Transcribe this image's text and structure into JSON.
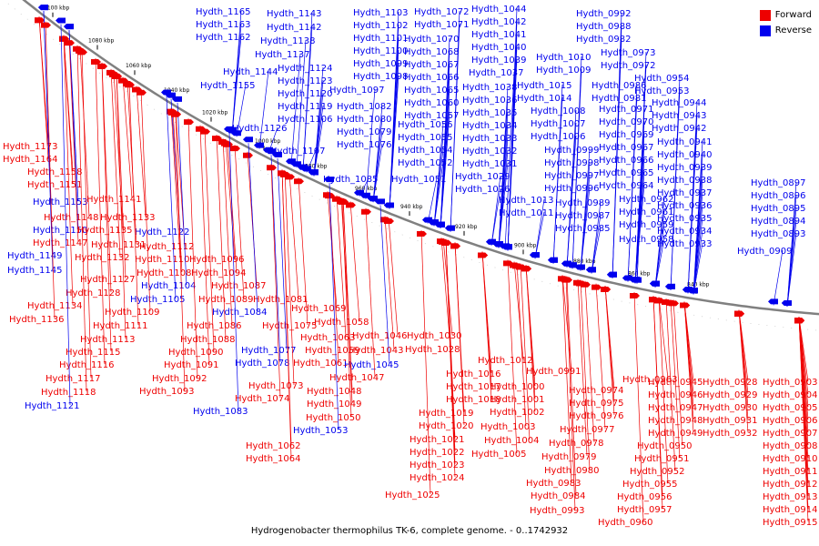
{
  "colors": {
    "forward": "#ee0000",
    "reverse": "#0000ee",
    "backbone": "#808080"
  },
  "legend": {
    "forward_label": "Forward",
    "reverse_label": "Reverse"
  },
  "caption": "Hydrogenobacter thermophilus TK-6, complete genome. - 0..1742932",
  "scale_ticks": [
    "1100 kbp",
    "1080 kbp",
    "1060 kbp",
    "1040 kbp",
    "1020 kbp",
    "1000 kbp",
    "980 kbp",
    "960 kbp",
    "940 kbp",
    "920 kbp",
    "900 kbp",
    "880 kbp",
    "860 kbp",
    "840 kbp"
  ],
  "genes": [
    {
      "name": "Hydth_1165",
      "strand": "reverse"
    },
    {
      "name": "Hydth_1163",
      "strand": "reverse"
    },
    {
      "name": "Hydth_1162",
      "strand": "reverse"
    },
    {
      "name": "Hydth_1155",
      "strand": "reverse"
    },
    {
      "name": "Hydth_1173",
      "strand": "forward"
    },
    {
      "name": "Hydth_1164",
      "strand": "forward"
    },
    {
      "name": "Hydth_1158",
      "strand": "forward"
    },
    {
      "name": "Hydth_1151",
      "strand": "forward"
    },
    {
      "name": "Hydth_1153",
      "strand": "reverse"
    },
    {
      "name": "Hydth_1141",
      "strand": "forward"
    },
    {
      "name": "Hydth_1148",
      "strand": "forward"
    },
    {
      "name": "Hydth_1133",
      "strand": "forward"
    },
    {
      "name": "Hydth_1150",
      "strand": "reverse"
    },
    {
      "name": "Hydth_1135",
      "strand": "forward"
    },
    {
      "name": "Hydth_1122",
      "strand": "reverse"
    },
    {
      "name": "Hydth_1147",
      "strand": "forward"
    },
    {
      "name": "Hydth_1131",
      "strand": "forward"
    },
    {
      "name": "Hydth_1112",
      "strand": "forward"
    },
    {
      "name": "Hydth_1149",
      "strand": "reverse"
    },
    {
      "name": "Hydth_1132",
      "strand": "forward"
    },
    {
      "name": "Hydth_1110",
      "strand": "forward"
    },
    {
      "name": "Hydth_1096",
      "strand": "forward"
    },
    {
      "name": "Hydth_1145",
      "strand": "reverse"
    },
    {
      "name": "Hydth_1108",
      "strand": "forward"
    },
    {
      "name": "Hydth_1094",
      "strand": "forward"
    },
    {
      "name": "Hydth_1127",
      "strand": "forward"
    },
    {
      "name": "Hydth_1104",
      "strand": "reverse"
    },
    {
      "name": "Hydth_1087",
      "strand": "forward"
    },
    {
      "name": "Hydth_1128",
      "strand": "forward"
    },
    {
      "name": "Hydth_1105",
      "strand": "reverse"
    },
    {
      "name": "Hydth_1089",
      "strand": "forward"
    },
    {
      "name": "Hydth_1081",
      "strand": "forward"
    },
    {
      "name": "Hydth_1134",
      "strand": "forward"
    },
    {
      "name": "Hydth_1109",
      "strand": "forward"
    },
    {
      "name": "Hydth_1084",
      "strand": "reverse"
    },
    {
      "name": "Hydth_1136",
      "strand": "forward"
    },
    {
      "name": "Hydth_1111",
      "strand": "forward"
    },
    {
      "name": "Hydth_1086",
      "strand": "forward"
    },
    {
      "name": "Hydth_1075",
      "strand": "forward"
    },
    {
      "name": "Hydth_1113",
      "strand": "forward"
    },
    {
      "name": "Hydth_1088",
      "strand": "forward"
    },
    {
      "name": "Hydth_1115",
      "strand": "forward"
    },
    {
      "name": "Hydth_1090",
      "strand": "forward"
    },
    {
      "name": "Hydth_1077",
      "strand": "reverse"
    },
    {
      "name": "Hydth_1116",
      "strand": "forward"
    },
    {
      "name": "Hydth_1091",
      "strand": "forward"
    },
    {
      "name": "Hydth_1078",
      "strand": "reverse"
    },
    {
      "name": "Hydth_1117",
      "strand": "forward"
    },
    {
      "name": "Hydth_1092",
      "strand": "forward"
    },
    {
      "name": "Hydth_1073",
      "strand": "forward"
    },
    {
      "name": "Hydth_1118",
      "strand": "forward"
    },
    {
      "name": "Hydth_1093",
      "strand": "forward"
    },
    {
      "name": "Hydth_1074",
      "strand": "forward"
    },
    {
      "name": "Hydth_1121",
      "strand": "reverse"
    },
    {
      "name": "Hydth_1083",
      "strand": "reverse"
    },
    {
      "name": "Hydth_1143",
      "strand": "reverse"
    },
    {
      "name": "Hydth_1142",
      "strand": "reverse"
    },
    {
      "name": "Hydth_1138",
      "strand": "reverse"
    },
    {
      "name": "Hydth_1137",
      "strand": "reverse"
    },
    {
      "name": "Hydth_1144",
      "strand": "reverse"
    },
    {
      "name": "Hydth_1126",
      "strand": "reverse"
    },
    {
      "name": "Hydth_1107",
      "strand": "reverse"
    },
    {
      "name": "Hydth_1124",
      "strand": "reverse"
    },
    {
      "name": "Hydth_1123",
      "strand": "reverse"
    },
    {
      "name": "Hydth_1120",
      "strand": "reverse"
    },
    {
      "name": "Hydth_1119",
      "strand": "reverse"
    },
    {
      "name": "Hydth_1106",
      "strand": "reverse"
    },
    {
      "name": "Hydth_1103",
      "strand": "reverse"
    },
    {
      "name": "Hydth_1102",
      "strand": "reverse"
    },
    {
      "name": "Hydth_1101",
      "strand": "reverse"
    },
    {
      "name": "Hydth_1100",
      "strand": "reverse"
    },
    {
      "name": "Hydth_1099",
      "strand": "reverse"
    },
    {
      "name": "Hydth_1098",
      "strand": "reverse"
    },
    {
      "name": "Hydth_1097",
      "strand": "reverse"
    },
    {
      "name": "Hydth_1082",
      "strand": "reverse"
    },
    {
      "name": "Hydth_1080",
      "strand": "reverse"
    },
    {
      "name": "Hydth_1079",
      "strand": "reverse"
    },
    {
      "name": "Hydth_1076",
      "strand": "reverse"
    },
    {
      "name": "Hydth_1085",
      "strand": "reverse"
    },
    {
      "name": "Hydth_1072",
      "strand": "reverse"
    },
    {
      "name": "Hydth_1071",
      "strand": "reverse"
    },
    {
      "name": "Hydth_1070",
      "strand": "reverse"
    },
    {
      "name": "Hydth_1068",
      "strand": "reverse"
    },
    {
      "name": "Hydth_1067",
      "strand": "reverse"
    },
    {
      "name": "Hydth_1066",
      "strand": "reverse"
    },
    {
      "name": "Hydth_1065",
      "strand": "reverse"
    },
    {
      "name": "Hydth_1060",
      "strand": "reverse"
    },
    {
      "name": "Hydth_1057",
      "strand": "reverse"
    },
    {
      "name": "Hydth_1056",
      "strand": "reverse"
    },
    {
      "name": "Hydth_1055",
      "strand": "reverse"
    },
    {
      "name": "Hydth_1054",
      "strand": "reverse"
    },
    {
      "name": "Hydth_1052",
      "strand": "reverse"
    },
    {
      "name": "Hydth_1051",
      "strand": "reverse"
    },
    {
      "name": "Hydth_1044",
      "strand": "reverse"
    },
    {
      "name": "Hydth_1042",
      "strand": "reverse"
    },
    {
      "name": "Hydth_1041",
      "strand": "reverse"
    },
    {
      "name": "Hydth_1040",
      "strand": "reverse"
    },
    {
      "name": "Hydth_1039",
      "strand": "reverse"
    },
    {
      "name": "Hydth_1037",
      "strand": "reverse"
    },
    {
      "name": "Hydth_1038",
      "strand": "reverse"
    },
    {
      "name": "Hydth_1036",
      "strand": "reverse"
    },
    {
      "name": "Hydth_1035",
      "strand": "reverse"
    },
    {
      "name": "Hydth_1034",
      "strand": "reverse"
    },
    {
      "name": "Hydth_1033",
      "strand": "reverse"
    },
    {
      "name": "Hydth_1032",
      "strand": "reverse"
    },
    {
      "name": "Hydth_1031",
      "strand": "reverse"
    },
    {
      "name": "Hydth_1029",
      "strand": "reverse"
    },
    {
      "name": "Hydth_1026",
      "strand": "reverse"
    },
    {
      "name": "Hydth_1015",
      "strand": "reverse"
    },
    {
      "name": "Hydth_1014",
      "strand": "reverse"
    },
    {
      "name": "Hydth_1008",
      "strand": "reverse"
    },
    {
      "name": "Hydth_1007",
      "strand": "reverse"
    },
    {
      "name": "Hydth_1006",
      "strand": "reverse"
    },
    {
      "name": "Hydth_1013",
      "strand": "reverse"
    },
    {
      "name": "Hydth_1011",
      "strand": "reverse"
    },
    {
      "name": "Hydth_1010",
      "strand": "reverse"
    },
    {
      "name": "Hydth_1009",
      "strand": "reverse"
    },
    {
      "name": "Hydth_0992",
      "strand": "reverse"
    },
    {
      "name": "Hydth_0988",
      "strand": "reverse"
    },
    {
      "name": "Hydth_0982",
      "strand": "reverse"
    },
    {
      "name": "Hydth_0973",
      "strand": "reverse"
    },
    {
      "name": "Hydth_0972",
      "strand": "reverse"
    },
    {
      "name": "Hydth_0986",
      "strand": "reverse"
    },
    {
      "name": "Hydth_0981",
      "strand": "reverse"
    },
    {
      "name": "Hydth_0971",
      "strand": "reverse"
    },
    {
      "name": "Hydth_0970",
      "strand": "reverse"
    },
    {
      "name": "Hydth_0969",
      "strand": "reverse"
    },
    {
      "name": "Hydth_0967",
      "strand": "reverse"
    },
    {
      "name": "Hydth_0966",
      "strand": "reverse"
    },
    {
      "name": "Hydth_0965",
      "strand": "reverse"
    },
    {
      "name": "Hydth_0964",
      "strand": "reverse"
    },
    {
      "name": "Hydth_0962",
      "strand": "reverse"
    },
    {
      "name": "Hydth_0961",
      "strand": "reverse"
    },
    {
      "name": "Hydth_0959",
      "strand": "reverse"
    },
    {
      "name": "Hydth_0958",
      "strand": "reverse"
    },
    {
      "name": "Hydth_0999",
      "strand": "reverse"
    },
    {
      "name": "Hydth_0998",
      "strand": "reverse"
    },
    {
      "name": "Hydth_0997",
      "strand": "reverse"
    },
    {
      "name": "Hydth_0996",
      "strand": "reverse"
    },
    {
      "name": "Hydth_0989",
      "strand": "reverse"
    },
    {
      "name": "Hydth_0987",
      "strand": "reverse"
    },
    {
      "name": "Hydth_0985",
      "strand": "reverse"
    },
    {
      "name": "Hydth_0954",
      "strand": "reverse"
    },
    {
      "name": "Hydth_0953",
      "strand": "reverse"
    },
    {
      "name": "Hydth_0944",
      "strand": "reverse"
    },
    {
      "name": "Hydth_0943",
      "strand": "reverse"
    },
    {
      "name": "Hydth_0942",
      "strand": "reverse"
    },
    {
      "name": "Hydth_0941",
      "strand": "reverse"
    },
    {
      "name": "Hydth_0940",
      "strand": "reverse"
    },
    {
      "name": "Hydth_0939",
      "strand": "reverse"
    },
    {
      "name": "Hydth_0938",
      "strand": "reverse"
    },
    {
      "name": "Hydth_0937",
      "strand": "reverse"
    },
    {
      "name": "Hydth_0936",
      "strand": "reverse"
    },
    {
      "name": "Hydth_0935",
      "strand": "reverse"
    },
    {
      "name": "Hydth_0934",
      "strand": "reverse"
    },
    {
      "name": "Hydth_0933",
      "strand": "reverse"
    },
    {
      "name": "Hydth_0897",
      "strand": "reverse"
    },
    {
      "name": "Hydth_0896",
      "strand": "reverse"
    },
    {
      "name": "Hydth_0895",
      "strand": "reverse"
    },
    {
      "name": "Hydth_0894",
      "strand": "reverse"
    },
    {
      "name": "Hydth_0893",
      "strand": "reverse"
    },
    {
      "name": "Hydth_0909",
      "strand": "reverse"
    },
    {
      "name": "Hydth_1069",
      "strand": "forward"
    },
    {
      "name": "Hydth_1058",
      "strand": "forward"
    },
    {
      "name": "Hydth_1063",
      "strand": "forward"
    },
    {
      "name": "Hydth_1046",
      "strand": "forward"
    },
    {
      "name": "Hydth_1059",
      "strand": "forward"
    },
    {
      "name": "Hydth_1043",
      "strand": "forward"
    },
    {
      "name": "Hydth_1061",
      "strand": "forward"
    },
    {
      "name": "Hydth_1045",
      "strand": "reverse"
    },
    {
      "name": "Hydth_1047",
      "strand": "forward"
    },
    {
      "name": "Hydth_1048",
      "strand": "forward"
    },
    {
      "name": "Hydth_1049",
      "strand": "forward"
    },
    {
      "name": "Hydth_1050",
      "strand": "forward"
    },
    {
      "name": "Hydth_1053",
      "strand": "reverse"
    },
    {
      "name": "Hydth_1062",
      "strand": "forward"
    },
    {
      "name": "Hydth_1064",
      "strand": "forward"
    },
    {
      "name": "Hydth_1030",
      "strand": "forward"
    },
    {
      "name": "Hydth_1028",
      "strand": "forward"
    },
    {
      "name": "Hydth_1012",
      "strand": "forward"
    },
    {
      "name": "Hydth_1016",
      "strand": "forward"
    },
    {
      "name": "Hydth_1017",
      "strand": "forward"
    },
    {
      "name": "Hydth_1018",
      "strand": "forward"
    },
    {
      "name": "Hydth_1019",
      "strand": "forward"
    },
    {
      "name": "Hydth_1020",
      "strand": "forward"
    },
    {
      "name": "Hydth_1021",
      "strand": "forward"
    },
    {
      "name": "Hydth_1022",
      "strand": "forward"
    },
    {
      "name": "Hydth_1023",
      "strand": "forward"
    },
    {
      "name": "Hydth_1024",
      "strand": "forward"
    },
    {
      "name": "Hydth_1025",
      "strand": "forward"
    },
    {
      "name": "Hydth_1000",
      "strand": "forward"
    },
    {
      "name": "Hydth_1001",
      "strand": "forward"
    },
    {
      "name": "Hydth_1002",
      "strand": "forward"
    },
    {
      "name": "Hydth_1003",
      "strand": "forward"
    },
    {
      "name": "Hydth_1004",
      "strand": "forward"
    },
    {
      "name": "Hydth_1005",
      "strand": "forward"
    },
    {
      "name": "Hydth_0991",
      "strand": "forward"
    },
    {
      "name": "Hydth_0974",
      "strand": "forward"
    },
    {
      "name": "Hydth_0975",
      "strand": "forward"
    },
    {
      "name": "Hydth_0976",
      "strand": "forward"
    },
    {
      "name": "Hydth_0977",
      "strand": "forward"
    },
    {
      "name": "Hydth_0978",
      "strand": "forward"
    },
    {
      "name": "Hydth_0979",
      "strand": "forward"
    },
    {
      "name": "Hydth_0980",
      "strand": "forward"
    },
    {
      "name": "Hydth_0983",
      "strand": "forward"
    },
    {
      "name": "Hydth_0984",
      "strand": "forward"
    },
    {
      "name": "Hydth_0993",
      "strand": "forward"
    },
    {
      "name": "Hydth_0963",
      "strand": "forward"
    },
    {
      "name": "Hydth_0945",
      "strand": "forward"
    },
    {
      "name": "Hydth_0946",
      "strand": "forward"
    },
    {
      "name": "Hydth_0947",
      "strand": "forward"
    },
    {
      "name": "Hydth_0948",
      "strand": "forward"
    },
    {
      "name": "Hydth_0949",
      "strand": "forward"
    },
    {
      "name": "Hydth_0950",
      "strand": "forward"
    },
    {
      "name": "Hydth_0951",
      "strand": "forward"
    },
    {
      "name": "Hydth_0952",
      "strand": "forward"
    },
    {
      "name": "Hydth_0955",
      "strand": "forward"
    },
    {
      "name": "Hydth_0956",
      "strand": "forward"
    },
    {
      "name": "Hydth_0957",
      "strand": "forward"
    },
    {
      "name": "Hydth_0960",
      "strand": "forward"
    },
    {
      "name": "Hydth_0928",
      "strand": "forward"
    },
    {
      "name": "Hydth_0929",
      "strand": "forward"
    },
    {
      "name": "Hydth_0930",
      "strand": "forward"
    },
    {
      "name": "Hydth_0931",
      "strand": "forward"
    },
    {
      "name": "Hydth_0932",
      "strand": "forward"
    },
    {
      "name": "Hydth_0903",
      "strand": "forward"
    },
    {
      "name": "Hydth_0904",
      "strand": "forward"
    },
    {
      "name": "Hydth_0905",
      "strand": "forward"
    },
    {
      "name": "Hydth_0906",
      "strand": "forward"
    },
    {
      "name": "Hydth_0907",
      "strand": "forward"
    },
    {
      "name": "Hydth_0908",
      "strand": "forward"
    },
    {
      "name": "Hydth_0910",
      "strand": "forward"
    },
    {
      "name": "Hydth_0911",
      "strand": "forward"
    },
    {
      "name": "Hydth_0912",
      "strand": "forward"
    },
    {
      "name": "Hydth_0913",
      "strand": "forward"
    },
    {
      "name": "Hydth_0914",
      "strand": "forward"
    },
    {
      "name": "Hydth_0915",
      "strand": "forward"
    }
  ]
}
